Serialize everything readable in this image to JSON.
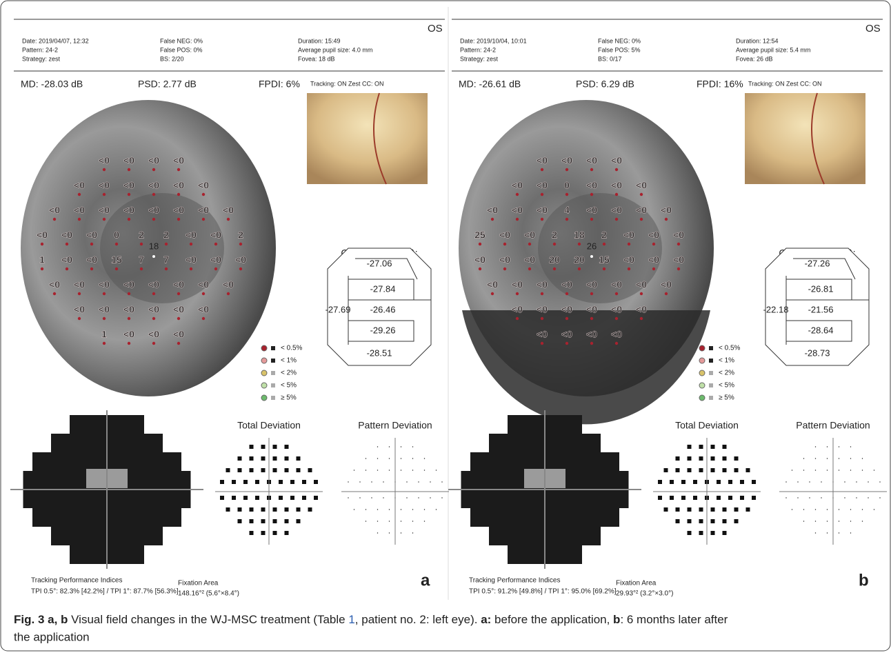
{
  "panels": [
    {
      "eye": "OS",
      "header": [
        [
          "Date: 2019/04/07, 12:32",
          "Pattern: 24-2",
          "Strategy: zest"
        ],
        [
          "False NEG: 0%",
          "False POS: 0%",
          "BS: 2/20"
        ],
        [
          "Duration: 15:49",
          "Average pupil size: 4.0 mm",
          "Fovea: 18 dB"
        ]
      ],
      "md": "MD: -28.03 dB",
      "psd": "PSD: 2.77 dB",
      "fpdi": "FPDI: 6%",
      "tracking": "Tracking: ON",
      "zest": "Zest CC: ON",
      "fovea": "18",
      "grid": [
        [
          "<0",
          "<0",
          "<0",
          "<0"
        ],
        [
          "<0",
          "<0",
          "<0",
          "<0",
          "<0",
          "<0"
        ],
        [
          "<0",
          "<0",
          "<0",
          "<0",
          "<0",
          "<0",
          "<0",
          "<0"
        ],
        [
          "<0",
          "<0",
          "<0",
          "0",
          "2",
          "2",
          "<0",
          "<0",
          "2"
        ],
        [
          "1",
          "<0",
          "<0",
          "15",
          "7",
          "7",
          "<0",
          "<0",
          "<0"
        ],
        [
          "<0",
          "<0",
          "<0",
          "<0",
          "<0",
          "<0",
          "<0",
          "<0"
        ],
        [
          "<0",
          "<0",
          "<0",
          "<0",
          "<0",
          "<0"
        ],
        [
          "1",
          "<0",
          "<0",
          "<0"
        ]
      ],
      "cluster_title": "Cluster MDs (dB):",
      "clusters": [
        "-27.06",
        "-27.84",
        "-27.69",
        "-26.46",
        "-29.26",
        "-28.51"
      ],
      "legend": [
        "< 0.5%",
        "< 1%",
        "< 2%",
        "< 5%",
        "≥ 5%"
      ],
      "total_deviation": "Total Deviation",
      "pattern_deviation": "Pattern Deviation",
      "tpi_title": "Tracking Performance Indices",
      "tpi": "TPI 0.5°: 82.3% [42.2%] / TPI 1°: 87.7% [56.3%]",
      "fixation_title": "Fixation Area",
      "fixation": "148.16°² (5.6°×8.4°)",
      "label": "a"
    },
    {
      "eye": "OS",
      "header": [
        [
          "Date: 2019/10/04, 10:01",
          "Pattern: 24-2",
          "Strategy: zest"
        ],
        [
          "False NEG: 0%",
          "False POS: 5%",
          "BS: 0/17"
        ],
        [
          "Duration: 12:54",
          "Average pupil size: 5.4 mm",
          "Fovea: 26 dB"
        ]
      ],
      "md": "MD: -26.61 dB",
      "psd": "PSD: 6.29 dB",
      "fpdi": "FPDI: 16%",
      "tracking": "Tracking: ON",
      "zest": "Zest CC: ON",
      "fovea": "26",
      "grid": [
        [
          "<0",
          "<0",
          "<0",
          "<0"
        ],
        [
          "<0",
          "<0",
          "0",
          "<0",
          "<0",
          "<0"
        ],
        [
          "<0",
          "<0",
          "<0",
          "4",
          "<0",
          "<0",
          "<0",
          "<0"
        ],
        [
          "25",
          "<0",
          "<0",
          "2",
          "18",
          "2",
          "<0",
          "<0",
          "<0"
        ],
        [
          "<0",
          "<0",
          "<0",
          "20",
          "20",
          "15",
          "<0",
          "<0",
          "<0"
        ],
        [
          "<0",
          "<0",
          "<0",
          "<0",
          "<0",
          "<0",
          "<0",
          "<0"
        ],
        [
          "<0",
          "<0",
          "<0",
          "<0",
          "<0",
          "<0"
        ],
        [
          "<0",
          "<0",
          "<0",
          "<0"
        ]
      ],
      "cluster_title": "Cluster MDs (dB):",
      "clusters": [
        "-27.26",
        "-26.81",
        "-22.18",
        "-21.56",
        "-28.64",
        "-28.73"
      ],
      "legend": [
        "< 0.5%",
        "< 1%",
        "< 2%",
        "< 5%",
        "≥ 5%"
      ],
      "total_deviation": "Total Deviation",
      "pattern_deviation": "Pattern Deviation",
      "tpi_title": "Tracking Performance Indices",
      "tpi": "TPI 0.5°: 91.2% [49.8%] / TPI 1°: 95.0% [69.2%]",
      "fixation_title": "Fixation Area",
      "fixation": "29.93°² (3.2°×3.0°)",
      "label": "b"
    }
  ],
  "caption": [
    {
      "text": "Fig. 3 a, b",
      "style": "bold"
    },
    {
      "text": " Visual field changes in the WJ-MSC treatment (Table ",
      "style": "normal"
    },
    {
      "text": "1",
      "style": "link"
    },
    {
      "text": ", patient no. 2: left eye). ",
      "style": "normal"
    },
    {
      "text": "a:",
      "style": "bold"
    },
    {
      "text": " before the application, ",
      "style": "normal"
    },
    {
      "text": "b",
      "style": "bold"
    },
    {
      "text": ": 6 months later after",
      "style": "normal"
    }
  ],
  "caption_line2": "the application"
}
